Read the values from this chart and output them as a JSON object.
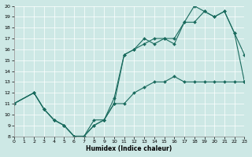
{
  "xlabel": "Humidex (Indice chaleur)",
  "xlim": [
    0,
    23
  ],
  "ylim": [
    8,
    20
  ],
  "xticks": [
    0,
    1,
    2,
    3,
    4,
    5,
    6,
    7,
    8,
    9,
    10,
    11,
    12,
    13,
    14,
    15,
    16,
    17,
    18,
    19,
    20,
    21,
    22,
    23
  ],
  "yticks": [
    8,
    9,
    10,
    11,
    12,
    13,
    14,
    15,
    16,
    17,
    18,
    19,
    20
  ],
  "bg_color": "#cde8e5",
  "line_color": "#1a6b5e",
  "line1_x": [
    0,
    2,
    3,
    4,
    5,
    6,
    7,
    8,
    9,
    10,
    11,
    12,
    13,
    14,
    15,
    16,
    17,
    18,
    19,
    20,
    21,
    22,
    23
  ],
  "line1_y": [
    11,
    12,
    10.5,
    9.5,
    9.0,
    8.0,
    8.0,
    9.5,
    9.5,
    11.5,
    15.5,
    16.0,
    16.5,
    17.0,
    17.0,
    17.0,
    18.5,
    20.0,
    19.5,
    19.0,
    19.5,
    17.5,
    13.0
  ],
  "line2_x": [
    0,
    2,
    3,
    4,
    5,
    6,
    7,
    8,
    9,
    10,
    11,
    12,
    13,
    14,
    15,
    16,
    17,
    18,
    19,
    20,
    21,
    22,
    23
  ],
  "line2_y": [
    11,
    12,
    10.5,
    9.5,
    9.0,
    8.0,
    8.0,
    9.0,
    9.5,
    11.0,
    15.5,
    16.0,
    17.0,
    16.5,
    17.0,
    16.5,
    18.5,
    18.5,
    19.5,
    19.0,
    19.5,
    17.5,
    15.5
  ],
  "line3_x": [
    0,
    2,
    3,
    4,
    5,
    6,
    7,
    8,
    9,
    10,
    11,
    12,
    13,
    14,
    15,
    16,
    17,
    18,
    19,
    20,
    21,
    22,
    23
  ],
  "line3_y": [
    11,
    12,
    10.5,
    9.5,
    9.0,
    8.0,
    8.0,
    9.0,
    9.5,
    11.0,
    11.0,
    12.0,
    12.5,
    13.0,
    13.0,
    13.5,
    13.0,
    13.0,
    13.0,
    13.0,
    13.0,
    13.0,
    13.0
  ]
}
